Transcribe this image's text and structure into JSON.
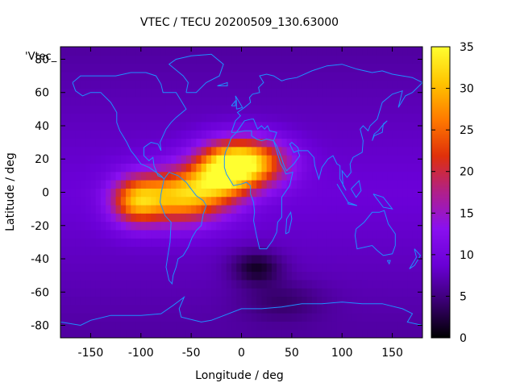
{
  "chart_data": {
    "type": "heatmap",
    "title": "VTEC / TECU 20200509_130.63000",
    "xlabel": "Longitude / deg",
    "ylabel": "Latitude / deg",
    "key_label": "'Vtec_",
    "xlim": [
      -180,
      180
    ],
    "ylim": [
      -87.5,
      87.5
    ],
    "x_ticks": [
      -150,
      -100,
      -50,
      0,
      50,
      100,
      150
    ],
    "y_ticks": [
      -80,
      -60,
      -40,
      -20,
      0,
      20,
      40,
      60,
      80
    ],
    "x_tick_labels": [
      "-150",
      "-100",
      "-50",
      "0",
      "50",
      "100",
      "150"
    ],
    "y_tick_labels": [
      "-80",
      "-60",
      "-40",
      "-20",
      "0",
      "20",
      "40",
      "60",
      "80"
    ],
    "colorbar": {
      "range": [
        0,
        35
      ],
      "ticks": [
        0,
        5,
        10,
        15,
        20,
        25,
        30,
        35
      ],
      "tick_labels": [
        "0",
        "5",
        "10",
        "15",
        "20",
        "25",
        "30",
        "35"
      ],
      "palette": [
        "#000000",
        "#3a0072",
        "#6a00d6",
        "#8a10f0",
        "#b0208a",
        "#e0300a",
        "#ff7a00",
        "#ffc400",
        "#ffff30"
      ]
    },
    "grid": false,
    "coastline_color": "#1e90ff",
    "grid_step_deg": 5,
    "field_model": {
      "background_tecu": 9,
      "hotspots": [
        {
          "lon": 5,
          "lat": 18,
          "peak_tecu": 24,
          "lon_spread": 38,
          "lat_spread": 14
        },
        {
          "lon": -60,
          "lat": -2,
          "peak_tecu": 21,
          "lon_spread": 40,
          "lat_spread": 16
        },
        {
          "lon": -105,
          "lat": -5,
          "peak_tecu": 17,
          "lon_spread": 25,
          "lat_spread": 14
        },
        {
          "lon": -20,
          "lat": 10,
          "peak_tecu": 16,
          "lon_spread": 30,
          "lat_spread": 16
        }
      ],
      "lows": [
        {
          "lon": 15,
          "lat": -45,
          "depth_tecu": 6,
          "lon_spread": 25,
          "lat_spread": 10
        },
        {
          "lon": 40,
          "lat": -65,
          "depth_tecu": 3,
          "lon_spread": 40,
          "lat_spread": 12
        }
      ]
    },
    "coastlines": [
      [
        [
          -168,
          66
        ],
        [
          -160,
          70
        ],
        [
          -140,
          70
        ],
        [
          -125,
          70
        ],
        [
          -110,
          72
        ],
        [
          -95,
          72
        ],
        [
          -85,
          70
        ],
        [
          -80,
          65
        ],
        [
          -78,
          60
        ],
        [
          -65,
          60
        ],
        [
          -60,
          55
        ],
        [
          -55,
          50
        ],
        [
          -65,
          45
        ],
        [
          -70,
          42
        ],
        [
          -75,
          38
        ],
        [
          -78,
          34
        ],
        [
          -81,
          30
        ],
        [
          -80,
          25
        ],
        [
          -83,
          29
        ],
        [
          -90,
          30
        ],
        [
          -97,
          27
        ],
        [
          -97,
          22
        ],
        [
          -92,
          19
        ],
        [
          -88,
          21
        ],
        [
          -87,
          16
        ],
        [
          -83,
          10
        ],
        [
          -79,
          9
        ],
        [
          -77,
          8
        ],
        [
          -80,
          10
        ],
        [
          -85,
          12
        ],
        [
          -92,
          15
        ],
        [
          -100,
          17
        ],
        [
          -106,
          22
        ],
        [
          -110,
          25
        ],
        [
          -114,
          30
        ],
        [
          -117,
          33
        ],
        [
          -121,
          37
        ],
        [
          -124,
          42
        ],
        [
          -124,
          48
        ],
        [
          -130,
          54
        ],
        [
          -140,
          60
        ],
        [
          -150,
          60
        ],
        [
          -158,
          58
        ],
        [
          -165,
          61
        ],
        [
          -168,
          66
        ]
      ],
      [
        [
          -77,
          8
        ],
        [
          -72,
          12
        ],
        [
          -63,
          10
        ],
        [
          -55,
          6
        ],
        [
          -50,
          2
        ],
        [
          -45,
          -2
        ],
        [
          -38,
          -5
        ],
        [
          -35,
          -8
        ],
        [
          -38,
          -13
        ],
        [
          -40,
          -20
        ],
        [
          -45,
          -23
        ],
        [
          -49,
          -27
        ],
        [
          -53,
          -33
        ],
        [
          -58,
          -38
        ],
        [
          -63,
          -40
        ],
        [
          -65,
          -45
        ],
        [
          -68,
          -50
        ],
        [
          -69,
          -55
        ],
        [
          -72,
          -53
        ],
        [
          -75,
          -45
        ],
        [
          -73,
          -37
        ],
        [
          -71,
          -30
        ],
        [
          -70,
          -18
        ],
        [
          -76,
          -14
        ],
        [
          -81,
          -6
        ],
        [
          -80,
          -1
        ],
        [
          -77,
          8
        ]
      ],
      [
        [
          -55,
          60
        ],
        [
          -45,
          60
        ],
        [
          -35,
          66
        ],
        [
          -22,
          70
        ],
        [
          -18,
          77
        ],
        [
          -30,
          83
        ],
        [
          -50,
          82
        ],
        [
          -65,
          80
        ],
        [
          -72,
          77
        ],
        [
          -58,
          70
        ],
        [
          -53,
          66
        ],
        [
          -55,
          60
        ]
      ],
      [
        [
          -10,
          36
        ],
        [
          -6,
          43
        ],
        [
          -1,
          46
        ],
        [
          -4,
          48
        ],
        [
          3,
          51
        ],
        [
          9,
          54
        ],
        [
          8,
          57
        ],
        [
          11,
          59
        ],
        [
          18,
          60
        ],
        [
          17,
          63
        ],
        [
          22,
          66
        ],
        [
          18,
          70
        ],
        [
          25,
          71
        ],
        [
          32,
          70
        ],
        [
          40,
          67
        ],
        [
          45,
          68
        ],
        [
          55,
          69
        ],
        [
          70,
          73
        ],
        [
          85,
          76
        ],
        [
          100,
          77
        ],
        [
          115,
          74
        ],
        [
          130,
          72
        ],
        [
          140,
          73
        ],
        [
          150,
          71
        ],
        [
          160,
          70
        ],
        [
          170,
          69
        ],
        [
          180,
          66
        ],
        [
          170,
          60
        ],
        [
          163,
          58
        ],
        [
          156,
          51
        ],
        [
          160,
          61
        ],
        [
          150,
          59
        ],
        [
          140,
          54
        ],
        [
          135,
          44
        ],
        [
          128,
          40
        ],
        [
          126,
          37
        ],
        [
          121,
          40
        ],
        [
          118,
          38
        ],
        [
          121,
          31
        ],
        [
          120,
          24
        ],
        [
          111,
          21
        ],
        [
          108,
          17
        ],
        [
          109,
          12
        ],
        [
          105,
          9
        ],
        [
          100,
          13
        ],
        [
          101,
          4
        ],
        [
          104,
          1
        ],
        [
          98,
          8
        ],
        [
          98,
          16
        ],
        [
          95,
          17
        ],
        [
          91,
          22
        ],
        [
          86,
          20
        ],
        [
          80,
          15
        ],
        [
          77,
          8
        ],
        [
          73,
          16
        ],
        [
          72,
          21
        ],
        [
          66,
          25
        ],
        [
          57,
          25
        ],
        [
          56,
          27
        ],
        [
          50,
          30
        ],
        [
          48,
          29
        ],
        [
          52,
          24
        ],
        [
          56,
          25
        ],
        [
          58,
          22
        ],
        [
          52,
          17
        ],
        [
          45,
          13
        ],
        [
          43,
          15
        ],
        [
          39,
          22
        ],
        [
          35,
          28
        ],
        [
          32,
          31
        ],
        [
          35,
          36
        ],
        [
          28,
          37
        ],
        [
          26,
          40
        ],
        [
          23,
          38
        ],
        [
          20,
          40
        ],
        [
          16,
          38
        ],
        [
          12,
          44
        ],
        [
          10,
          44
        ],
        [
          3,
          43
        ],
        [
          -5,
          36
        ],
        [
          -10,
          36
        ]
      ],
      [
        [
          -17,
          21
        ],
        [
          -17,
          15
        ],
        [
          -15,
          11
        ],
        [
          -8,
          4
        ],
        [
          0,
          5
        ],
        [
          5,
          6
        ],
        [
          9,
          4
        ],
        [
          9,
          -1
        ],
        [
          12,
          -6
        ],
        [
          13,
          -12
        ],
        [
          12,
          -17
        ],
        [
          15,
          -26
        ],
        [
          18,
          -34
        ],
        [
          25,
          -34
        ],
        [
          31,
          -29
        ],
        [
          35,
          -24
        ],
        [
          36,
          -18
        ],
        [
          40,
          -15
        ],
        [
          40,
          -10
        ],
        [
          40,
          -3
        ],
        [
          48,
          4
        ],
        [
          51,
          12
        ],
        [
          44,
          11
        ],
        [
          43,
          13
        ],
        [
          39,
          17
        ],
        [
          35,
          25
        ],
        [
          32,
          31
        ],
        [
          25,
          32
        ],
        [
          20,
          31
        ],
        [
          15,
          32
        ],
        [
          10,
          34
        ],
        [
          10,
          37
        ],
        [
          3,
          37
        ],
        [
          -5,
          36
        ],
        [
          -10,
          33
        ],
        [
          -13,
          28
        ],
        [
          -16,
          24
        ],
        [
          -17,
          21
        ]
      ],
      [
        [
          44,
          -25
        ],
        [
          47,
          -24
        ],
        [
          50,
          -16
        ],
        [
          49,
          -12
        ],
        [
          45,
          -16
        ],
        [
          44,
          -25
        ]
      ],
      [
        [
          114,
          -22
        ],
        [
          122,
          -18
        ],
        [
          130,
          -12
        ],
        [
          137,
          -12
        ],
        [
          142,
          -11
        ],
        [
          146,
          -19
        ],
        [
          153,
          -25
        ],
        [
          153,
          -32
        ],
        [
          150,
          -37
        ],
        [
          141,
          -38
        ],
        [
          135,
          -35
        ],
        [
          130,
          -32
        ],
        [
          115,
          -34
        ],
        [
          113,
          -26
        ],
        [
          114,
          -22
        ]
      ],
      [
        [
          145,
          -41
        ],
        [
          148,
          -41
        ],
        [
          147,
          -43
        ],
        [
          145,
          -41
        ]
      ],
      [
        [
          172,
          -34
        ],
        [
          178,
          -38
        ],
        [
          175,
          -41
        ],
        [
          172,
          -44
        ],
        [
          167,
          -46
        ],
        [
          172,
          -41
        ],
        [
          174,
          -39
        ],
        [
          172,
          -34
        ]
      ],
      [
        [
          130,
          31
        ],
        [
          132,
          34
        ],
        [
          136,
          35
        ],
        [
          140,
          36
        ],
        [
          141,
          41
        ],
        [
          145,
          43
        ],
        [
          140,
          40
        ],
        [
          136,
          37
        ],
        [
          132,
          35
        ],
        [
          130,
          31
        ]
      ],
      [
        [
          95,
          5
        ],
        [
          106,
          -6
        ],
        [
          100,
          0
        ],
        [
          95,
          5
        ]
      ],
      [
        [
          106,
          -6
        ],
        [
          115,
          -8
        ],
        [
          106,
          -7
        ],
        [
          106,
          -6
        ]
      ],
      [
        [
          109,
          2
        ],
        [
          117,
          7
        ],
        [
          119,
          1
        ],
        [
          114,
          -3
        ],
        [
          109,
          2
        ]
      ],
      [
        [
          131,
          -1
        ],
        [
          141,
          -3
        ],
        [
          150,
          -10
        ],
        [
          141,
          -9
        ],
        [
          131,
          -1
        ]
      ],
      [
        [
          -5,
          50
        ],
        [
          1,
          51
        ],
        [
          -3,
          55
        ],
        [
          -6,
          58
        ],
        [
          -5,
          55
        ],
        [
          -5,
          50
        ]
      ],
      [
        [
          -10,
          52
        ],
        [
          -6,
          55
        ],
        [
          -6,
          52
        ],
        [
          -10,
          52
        ]
      ],
      [
        [
          -24,
          64
        ],
        [
          -14,
          66
        ],
        [
          -14,
          64
        ],
        [
          -24,
          64
        ]
      ],
      [
        [
          -180,
          -78
        ],
        [
          -160,
          -80
        ],
        [
          -150,
          -77
        ],
        [
          -130,
          -74
        ],
        [
          -100,
          -74
        ],
        [
          -80,
          -73
        ],
        [
          -68,
          -68
        ],
        [
          -57,
          -63
        ],
        [
          -62,
          -70
        ],
        [
          -60,
          -75
        ],
        [
          -40,
          -78
        ],
        [
          -30,
          -77
        ],
        [
          0,
          -70
        ],
        [
          20,
          -70
        ],
        [
          40,
          -69
        ],
        [
          60,
          -67
        ],
        [
          80,
          -67
        ],
        [
          100,
          -66
        ],
        [
          120,
          -67
        ],
        [
          140,
          -67
        ],
        [
          160,
          -70
        ],
        [
          170,
          -73
        ],
        [
          165,
          -78
        ],
        [
          180,
          -80
        ]
      ]
    ]
  }
}
